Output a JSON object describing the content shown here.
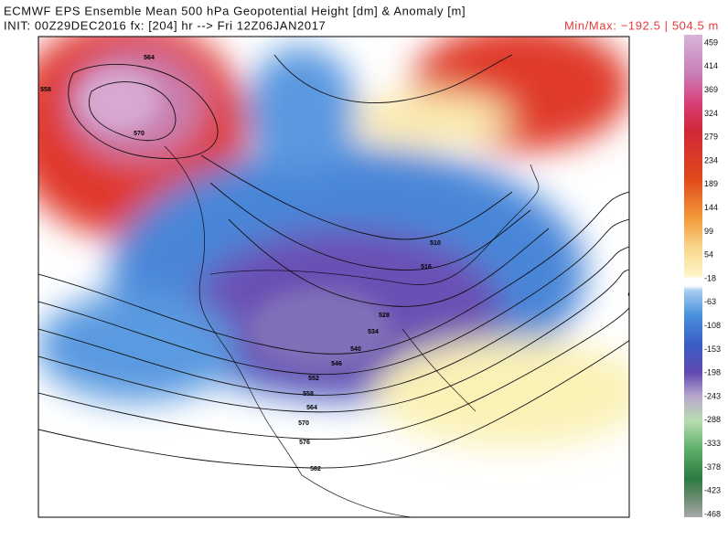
{
  "header": {
    "title": "ECMWF EPS Ensemble Mean 500 hPa Geopotential Height [dm] & Anomaly [m]",
    "init": "INIT: 00Z29DEC2016 fx: [204] hr --> Fri 12Z06JAN2017",
    "minmax": "Min/Max: −192.5 | 504.5 m"
  },
  "colorbar": {
    "ticks": [
      459,
      414,
      369,
      324,
      279,
      234,
      189,
      144,
      99,
      54,
      -18,
      -63,
      -108,
      -153,
      -198,
      -243,
      -288,
      -333,
      -378,
      -423,
      -468
    ]
  },
  "contour_labels": [
    "564",
    "558",
    "570",
    "510",
    "516",
    "528",
    "534",
    "540",
    "546",
    "552",
    "558",
    "564",
    "570",
    "576",
    "582"
  ]
}
